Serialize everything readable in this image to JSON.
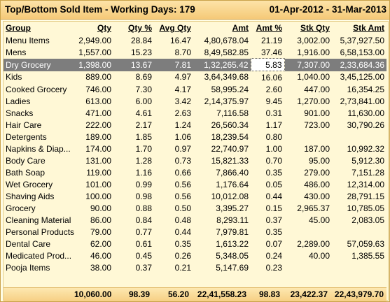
{
  "header": {
    "title": "Top/Bottom Sold Item - Working Days: 179",
    "date_range": "01-Apr-2012 - 31-Mar-2013"
  },
  "columns": [
    "Group",
    "Qty",
    "Qty %",
    "Avg Qty",
    "Amt",
    "Amt %",
    "Stk Qty",
    "Stk Amt"
  ],
  "rows": [
    [
      "Menu Items",
      "2,949.00",
      "28.84",
      "16.47",
      "4,80,678.04",
      "21.19",
      "3,002.00",
      "5,37,927.50"
    ],
    [
      "Mens",
      "1,557.00",
      "15.23",
      "8.70",
      "8,49,582.85",
      "37.46",
      "1,916.00",
      "6,58,153.00"
    ],
    [
      "Dry Grocery",
      "1,398.00",
      "13.67",
      "7.81",
      "1,32,265.42",
      "5.83",
      "7,307.00",
      "2,33,684.36"
    ],
    [
      "Kids",
      "889.00",
      "8.69",
      "4.97",
      "3,64,349.68",
      "16.06",
      "1,040.00",
      "3,45,125.00"
    ],
    [
      "Cooked Grocery",
      "746.00",
      "7.30",
      "4.17",
      "58,995.24",
      "2.60",
      "447.00",
      "16,354.25"
    ],
    [
      "Ladies",
      "613.00",
      "6.00",
      "3.42",
      "2,14,375.97",
      "9.45",
      "1,270.00",
      "2,73,841.00"
    ],
    [
      "Snacks",
      "471.00",
      "4.61",
      "2.63",
      "7,116.58",
      "0.31",
      "901.00",
      "11,630.00"
    ],
    [
      "Hair Care",
      "222.00",
      "2.17",
      "1.24",
      "26,560.34",
      "1.17",
      "723.00",
      "30,790.26"
    ],
    [
      "Detergents",
      "189.00",
      "1.85",
      "1.06",
      "18,239.54",
      "0.80",
      "",
      ""
    ],
    [
      "Napkins & Diap...",
      "174.00",
      "1.70",
      "0.97",
      "22,740.97",
      "1.00",
      "187.00",
      "10,992.32"
    ],
    [
      "Body Care",
      "131.00",
      "1.28",
      "0.73",
      "15,821.33",
      "0.70",
      "95.00",
      "5,912.30"
    ],
    [
      "Bath Soap",
      "119.00",
      "1.16",
      "0.66",
      "7,866.40",
      "0.35",
      "279.00",
      "7,151.28"
    ],
    [
      "Wet Grocery",
      "101.00",
      "0.99",
      "0.56",
      "1,176.64",
      "0.05",
      "486.00",
      "12,314.00"
    ],
    [
      "Shaving Aids",
      "100.00",
      "0.98",
      "0.56",
      "10,012.08",
      "0.44",
      "430.00",
      "28,791.15"
    ],
    [
      "Grocery",
      "90.00",
      "0.88",
      "0.50",
      "3,395.27",
      "0.15",
      "2,965.37",
      "10,785.05"
    ],
    [
      "Cleaning Material",
      "86.00",
      "0.84",
      "0.48",
      "8,293.11",
      "0.37",
      "45.00",
      "2,083.05"
    ],
    [
      "Personal Products",
      "79.00",
      "0.77",
      "0.44",
      "7,979.81",
      "0.35",
      "",
      ""
    ],
    [
      "Dental Care",
      "62.00",
      "0.61",
      "0.35",
      "1,613.22",
      "0.07",
      "2,289.00",
      "57,059.63"
    ],
    [
      "Medicated Prod...",
      "46.00",
      "0.45",
      "0.26",
      "5,348.05",
      "0.24",
      "40.00",
      "1,385.55"
    ],
    [
      "Pooja Items",
      "38.00",
      "0.37",
      "0.21",
      "5,147.69",
      "0.23",
      "",
      ""
    ]
  ],
  "selected_row": 2,
  "totals": {
    "qty": "10,060.00",
    "qty_pct": "98.39",
    "avg_qty": "56.20",
    "amt": "22,41,558.23",
    "amt_pct": "98.83",
    "stk_qty": "23,422.37",
    "stk_amt": "22,43,979.70"
  },
  "colors": {
    "title_bg": "#f5c978",
    "panel_bg": "#fff8d6",
    "selected_row_bg": "#7d7d7d"
  }
}
